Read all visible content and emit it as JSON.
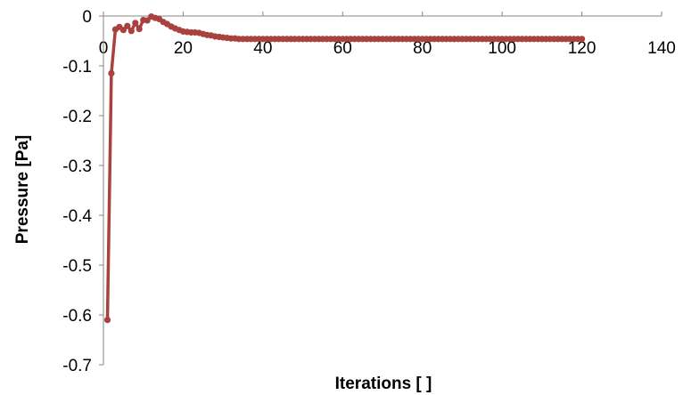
{
  "chart_data": {
    "type": "line",
    "title": "",
    "xlabel": "Iterations [ ]",
    "ylabel": "Pressure [Pa]",
    "xlim": [
      0,
      140
    ],
    "ylim": [
      -0.7,
      0
    ],
    "x_ticks": [
      0,
      20,
      40,
      60,
      80,
      100,
      120,
      140
    ],
    "y_ticks": [
      0,
      -0.1,
      -0.2,
      -0.3,
      -0.4,
      -0.5,
      -0.6,
      -0.7
    ],
    "x_tick_labels": [
      "0",
      "20",
      "40",
      "60",
      "80",
      "100",
      "120",
      "140"
    ],
    "y_tick_labels": [
      "0",
      "-0.1",
      "-0.2",
      "-0.3",
      "-0.4",
      "-0.5",
      "-0.6",
      "-0.7"
    ],
    "x_axis_position": "top (at y = 0)",
    "grid": false,
    "legend": "none",
    "marker": "circle",
    "series": [
      {
        "color": "#A9423F",
        "x": [
          1,
          2,
          3,
          4,
          5,
          6,
          7,
          8,
          9,
          10,
          11,
          12,
          13,
          14,
          15,
          16,
          17,
          18,
          19,
          20,
          21,
          22,
          23,
          24,
          25,
          26,
          27,
          28,
          29,
          30,
          31,
          32,
          33,
          34,
          35,
          36,
          37,
          38,
          39,
          40,
          41,
          42,
          43,
          44,
          45,
          46,
          47,
          48,
          49,
          50,
          51,
          52,
          53,
          54,
          55,
          56,
          57,
          58,
          59,
          60,
          61,
          62,
          63,
          64,
          65,
          66,
          67,
          68,
          69,
          70,
          71,
          72,
          73,
          74,
          75,
          76,
          77,
          78,
          79,
          80,
          81,
          82,
          83,
          84,
          85,
          86,
          87,
          88,
          89,
          90,
          91,
          92,
          93,
          94,
          95,
          96,
          97,
          98,
          99,
          100,
          101,
          102,
          103,
          104,
          105,
          106,
          107,
          108,
          109,
          110,
          111,
          112,
          113,
          114,
          115,
          116,
          117,
          118,
          119,
          120
        ],
        "y": [
          -0.61,
          -0.115,
          -0.027,
          -0.022,
          -0.028,
          -0.02,
          -0.03,
          -0.014,
          -0.026,
          -0.008,
          -0.009,
          -0.001,
          -0.004,
          -0.006,
          -0.012,
          -0.016,
          -0.021,
          -0.025,
          -0.028,
          -0.031,
          -0.032,
          -0.033,
          -0.033,
          -0.034,
          -0.036,
          -0.038,
          -0.039,
          -0.041,
          -0.042,
          -0.043,
          -0.044,
          -0.045,
          -0.045,
          -0.046,
          -0.046,
          -0.046,
          -0.046,
          -0.046,
          -0.046,
          -0.046,
          -0.046,
          -0.046,
          -0.046,
          -0.046,
          -0.046,
          -0.046,
          -0.046,
          -0.046,
          -0.046,
          -0.046,
          -0.046,
          -0.046,
          -0.046,
          -0.046,
          -0.046,
          -0.046,
          -0.046,
          -0.046,
          -0.046,
          -0.046,
          -0.046,
          -0.046,
          -0.046,
          -0.046,
          -0.046,
          -0.046,
          -0.046,
          -0.046,
          -0.046,
          -0.046,
          -0.046,
          -0.046,
          -0.046,
          -0.046,
          -0.046,
          -0.046,
          -0.046,
          -0.046,
          -0.046,
          -0.046,
          -0.046,
          -0.046,
          -0.046,
          -0.046,
          -0.046,
          -0.046,
          -0.046,
          -0.046,
          -0.046,
          -0.046,
          -0.046,
          -0.046,
          -0.046,
          -0.046,
          -0.046,
          -0.046,
          -0.046,
          -0.046,
          -0.046,
          -0.046,
          -0.046,
          -0.046,
          -0.046,
          -0.046,
          -0.046,
          -0.046,
          -0.046,
          -0.046,
          -0.046,
          -0.046,
          -0.046,
          -0.046,
          -0.046,
          -0.046,
          -0.046,
          -0.046,
          -0.046,
          -0.046,
          -0.046,
          -0.046
        ]
      }
    ]
  }
}
